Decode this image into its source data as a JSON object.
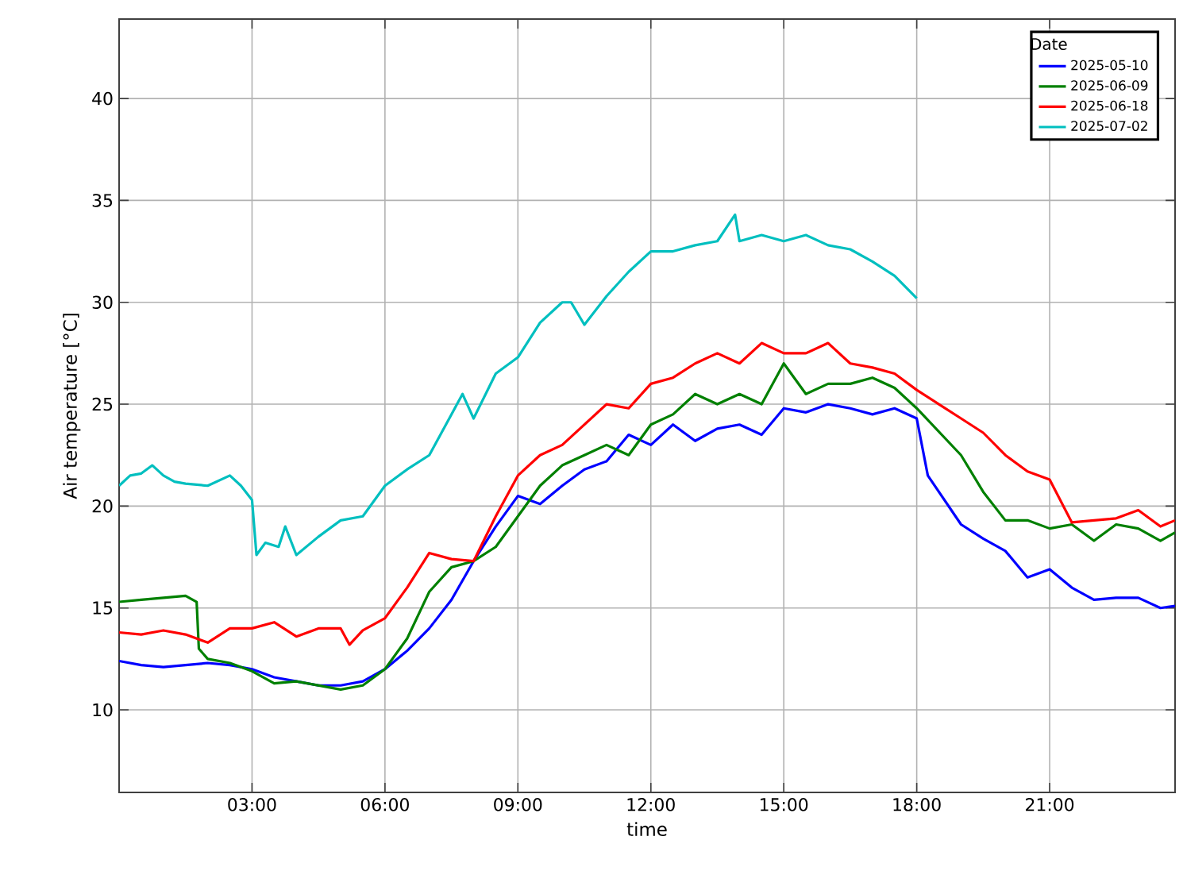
{
  "chart_data": {
    "type": "line",
    "xlabel": "time",
    "ylabel": "Air temperature [°C]",
    "legend_title": "Date",
    "legend": "top right",
    "grid": true,
    "marker": "none",
    "line_style": "solid",
    "xlim": [
      0,
      23.83
    ],
    "ylim": [
      5.95,
      43.9
    ],
    "xticks": [
      {
        "value": 3,
        "label": "03:00"
      },
      {
        "value": 6,
        "label": "06:00"
      },
      {
        "value": 9,
        "label": "09:00"
      },
      {
        "value": 12,
        "label": "12:00"
      },
      {
        "value": 15,
        "label": "15:00"
      },
      {
        "value": 18,
        "label": "18:00"
      },
      {
        "value": 21,
        "label": "21:00"
      }
    ],
    "yticks": [
      10,
      15,
      20,
      25,
      30,
      35,
      40
    ],
    "series": [
      {
        "name": "2025-05-10",
        "color": "#0000ff",
        "x": [
          0,
          0.5,
          1,
          1.5,
          2,
          2.5,
          3,
          3.5,
          4,
          4.5,
          5,
          5.5,
          6,
          6.5,
          7,
          7.5,
          8,
          8.5,
          9,
          9.5,
          10,
          10.5,
          11,
          11.5,
          12,
          12.5,
          13,
          13.5,
          14,
          14.5,
          15,
          15.5,
          16,
          16.5,
          17,
          17.5,
          18,
          18.25,
          19,
          19.5,
          20,
          20.5,
          21,
          21.5,
          22,
          22.5,
          23,
          23.5,
          23.83
        ],
        "values": [
          12.4,
          12.2,
          12.1,
          12.2,
          12.3,
          12.2,
          12.0,
          11.6,
          11.4,
          11.2,
          11.2,
          11.4,
          12.0,
          12.9,
          14.0,
          15.4,
          17.3,
          19.0,
          20.5,
          20.1,
          21.0,
          21.8,
          22.2,
          23.5,
          23.0,
          24.0,
          23.2,
          23.8,
          24.0,
          23.5,
          24.8,
          24.6,
          25.0,
          24.8,
          24.5,
          24.8,
          24.3,
          21.5,
          19.1,
          18.4,
          17.8,
          16.5,
          16.9,
          16.0,
          15.4,
          15.5,
          15.5,
          15.0,
          15.1
        ]
      },
      {
        "name": "2025-06-09",
        "color": "#008000",
        "x": [
          0,
          0.5,
          1,
          1.5,
          1.75,
          1.8,
          2,
          2.5,
          3,
          3.5,
          4,
          4.5,
          5,
          5.5,
          6,
          6.5,
          7,
          7.5,
          8,
          8.5,
          9,
          9.5,
          10,
          10.5,
          11,
          11.5,
          12,
          12.5,
          13,
          13.5,
          14,
          14.5,
          15,
          15.5,
          16,
          16.5,
          17,
          17.5,
          18,
          19,
          19.5,
          20,
          20.5,
          21,
          21.5,
          22,
          22.5,
          23,
          23.5,
          23.83
        ],
        "values": [
          15.3,
          15.4,
          15.5,
          15.6,
          15.3,
          13.0,
          12.5,
          12.3,
          11.9,
          11.3,
          11.4,
          11.2,
          11.0,
          11.2,
          12.0,
          13.5,
          15.8,
          17.0,
          17.3,
          18.0,
          19.5,
          21.0,
          22.0,
          22.5,
          23.0,
          22.5,
          24.0,
          24.5,
          25.5,
          25.0,
          25.5,
          25.0,
          27.0,
          25.5,
          26.0,
          26.0,
          26.3,
          25.8,
          24.8,
          22.5,
          20.7,
          19.3,
          19.3,
          18.9,
          19.1,
          18.3,
          19.1,
          18.9,
          18.3,
          18.7
        ]
      },
      {
        "name": "2025-06-18",
        "color": "#ff0000",
        "x": [
          0,
          0.5,
          1,
          1.5,
          2,
          2.5,
          3,
          3.5,
          4,
          4.5,
          5,
          5.2,
          5.5,
          6,
          6.5,
          7,
          7.5,
          8,
          8.5,
          9,
          9.5,
          10,
          10.5,
          11,
          11.5,
          12,
          12.5,
          13,
          13.5,
          14,
          14.5,
          15,
          15.5,
          16,
          16.5,
          17,
          17.5,
          18,
          18.5,
          19,
          19.5,
          20,
          20.5,
          21,
          21.5,
          22,
          22.5,
          23,
          23.5,
          23.83
        ],
        "values": [
          13.8,
          13.7,
          13.9,
          13.7,
          13.3,
          14.0,
          14.0,
          14.3,
          13.6,
          14.0,
          14.0,
          13.2,
          13.9,
          14.5,
          16.0,
          17.7,
          17.4,
          17.3,
          19.5,
          21.5,
          22.5,
          23.0,
          24.0,
          25.0,
          24.8,
          26.0,
          26.3,
          27.0,
          27.5,
          27.0,
          28.0,
          27.5,
          27.5,
          28.0,
          27.0,
          26.8,
          26.5,
          25.7,
          25.0,
          24.3,
          23.6,
          22.5,
          21.7,
          21.3,
          19.2,
          19.3,
          19.4,
          19.8,
          19.0,
          19.3
        ]
      },
      {
        "name": "2025-07-02",
        "color": "#00bfbf",
        "x": [
          0,
          0.25,
          0.5,
          0.75,
          1,
          1.25,
          1.5,
          2,
          2.5,
          2.75,
          3,
          3.1,
          3.3,
          3.6,
          3.75,
          4,
          4.5,
          5,
          5.5,
          6,
          6.5,
          7,
          7.5,
          7.75,
          8,
          8.5,
          9,
          9.5,
          10,
          10.2,
          10.5,
          11,
          11.5,
          12,
          12.5,
          13,
          13.5,
          13.9,
          14,
          14.5,
          15,
          15.5,
          16,
          16.5,
          17,
          17.5,
          18
        ],
        "values": [
          21.0,
          21.5,
          21.6,
          22.0,
          21.5,
          21.2,
          21.1,
          21.0,
          21.5,
          21.0,
          20.3,
          17.6,
          18.2,
          18.0,
          19.0,
          17.6,
          18.5,
          19.3,
          19.5,
          21.0,
          21.8,
          22.5,
          24.5,
          25.5,
          24.3,
          26.5,
          27.3,
          29.0,
          30.0,
          30.0,
          28.9,
          30.3,
          31.5,
          32.5,
          32.5,
          32.8,
          33.0,
          34.3,
          33.0,
          33.3,
          33.0,
          33.3,
          32.8,
          32.6,
          32.0,
          31.3,
          30.2
        ]
      }
    ]
  }
}
